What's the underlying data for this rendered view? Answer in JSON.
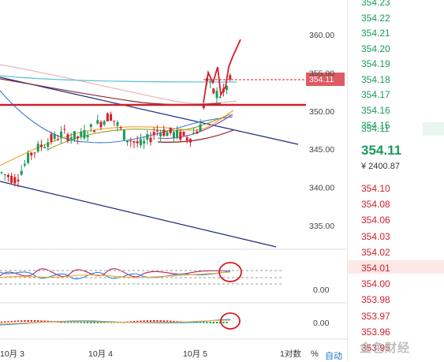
{
  "chart_data": {
    "type": "candlestick",
    "y_axis_main": [
      360.0,
      355.0,
      350.0,
      345.0,
      340.0,
      335.0
    ],
    "y_axis_osc1": [
      "0.00"
    ],
    "y_axis_osc2": [
      "0.00"
    ],
    "x_labels": [
      "10月 3",
      "10月 4",
      "10月 5",
      "1对数"
    ],
    "current_price_tag": "354.11",
    "reference_level": 350.8
  },
  "orderbook": {
    "asks": [
      "354.23",
      "354.22",
      "354.21",
      "354.20",
      "354.19",
      "354.18",
      "354.17",
      "354.16",
      "354.15",
      "354.11"
    ],
    "current_price": "354.11",
    "gold_price": "¥ 2400.87",
    "bids": [
      "354.10",
      "354.08",
      "354.06",
      "354.03",
      "354.02",
      "354.01",
      "354.00",
      "353.98",
      "353.97",
      "353.96",
      "353.95"
    ]
  },
  "footer": {
    "percent": "%",
    "auto": "自动"
  },
  "watermark": "金色财经",
  "colors": {
    "up": "#1a9b5a",
    "down": "#d21f2a",
    "accent": "#c8232c"
  }
}
